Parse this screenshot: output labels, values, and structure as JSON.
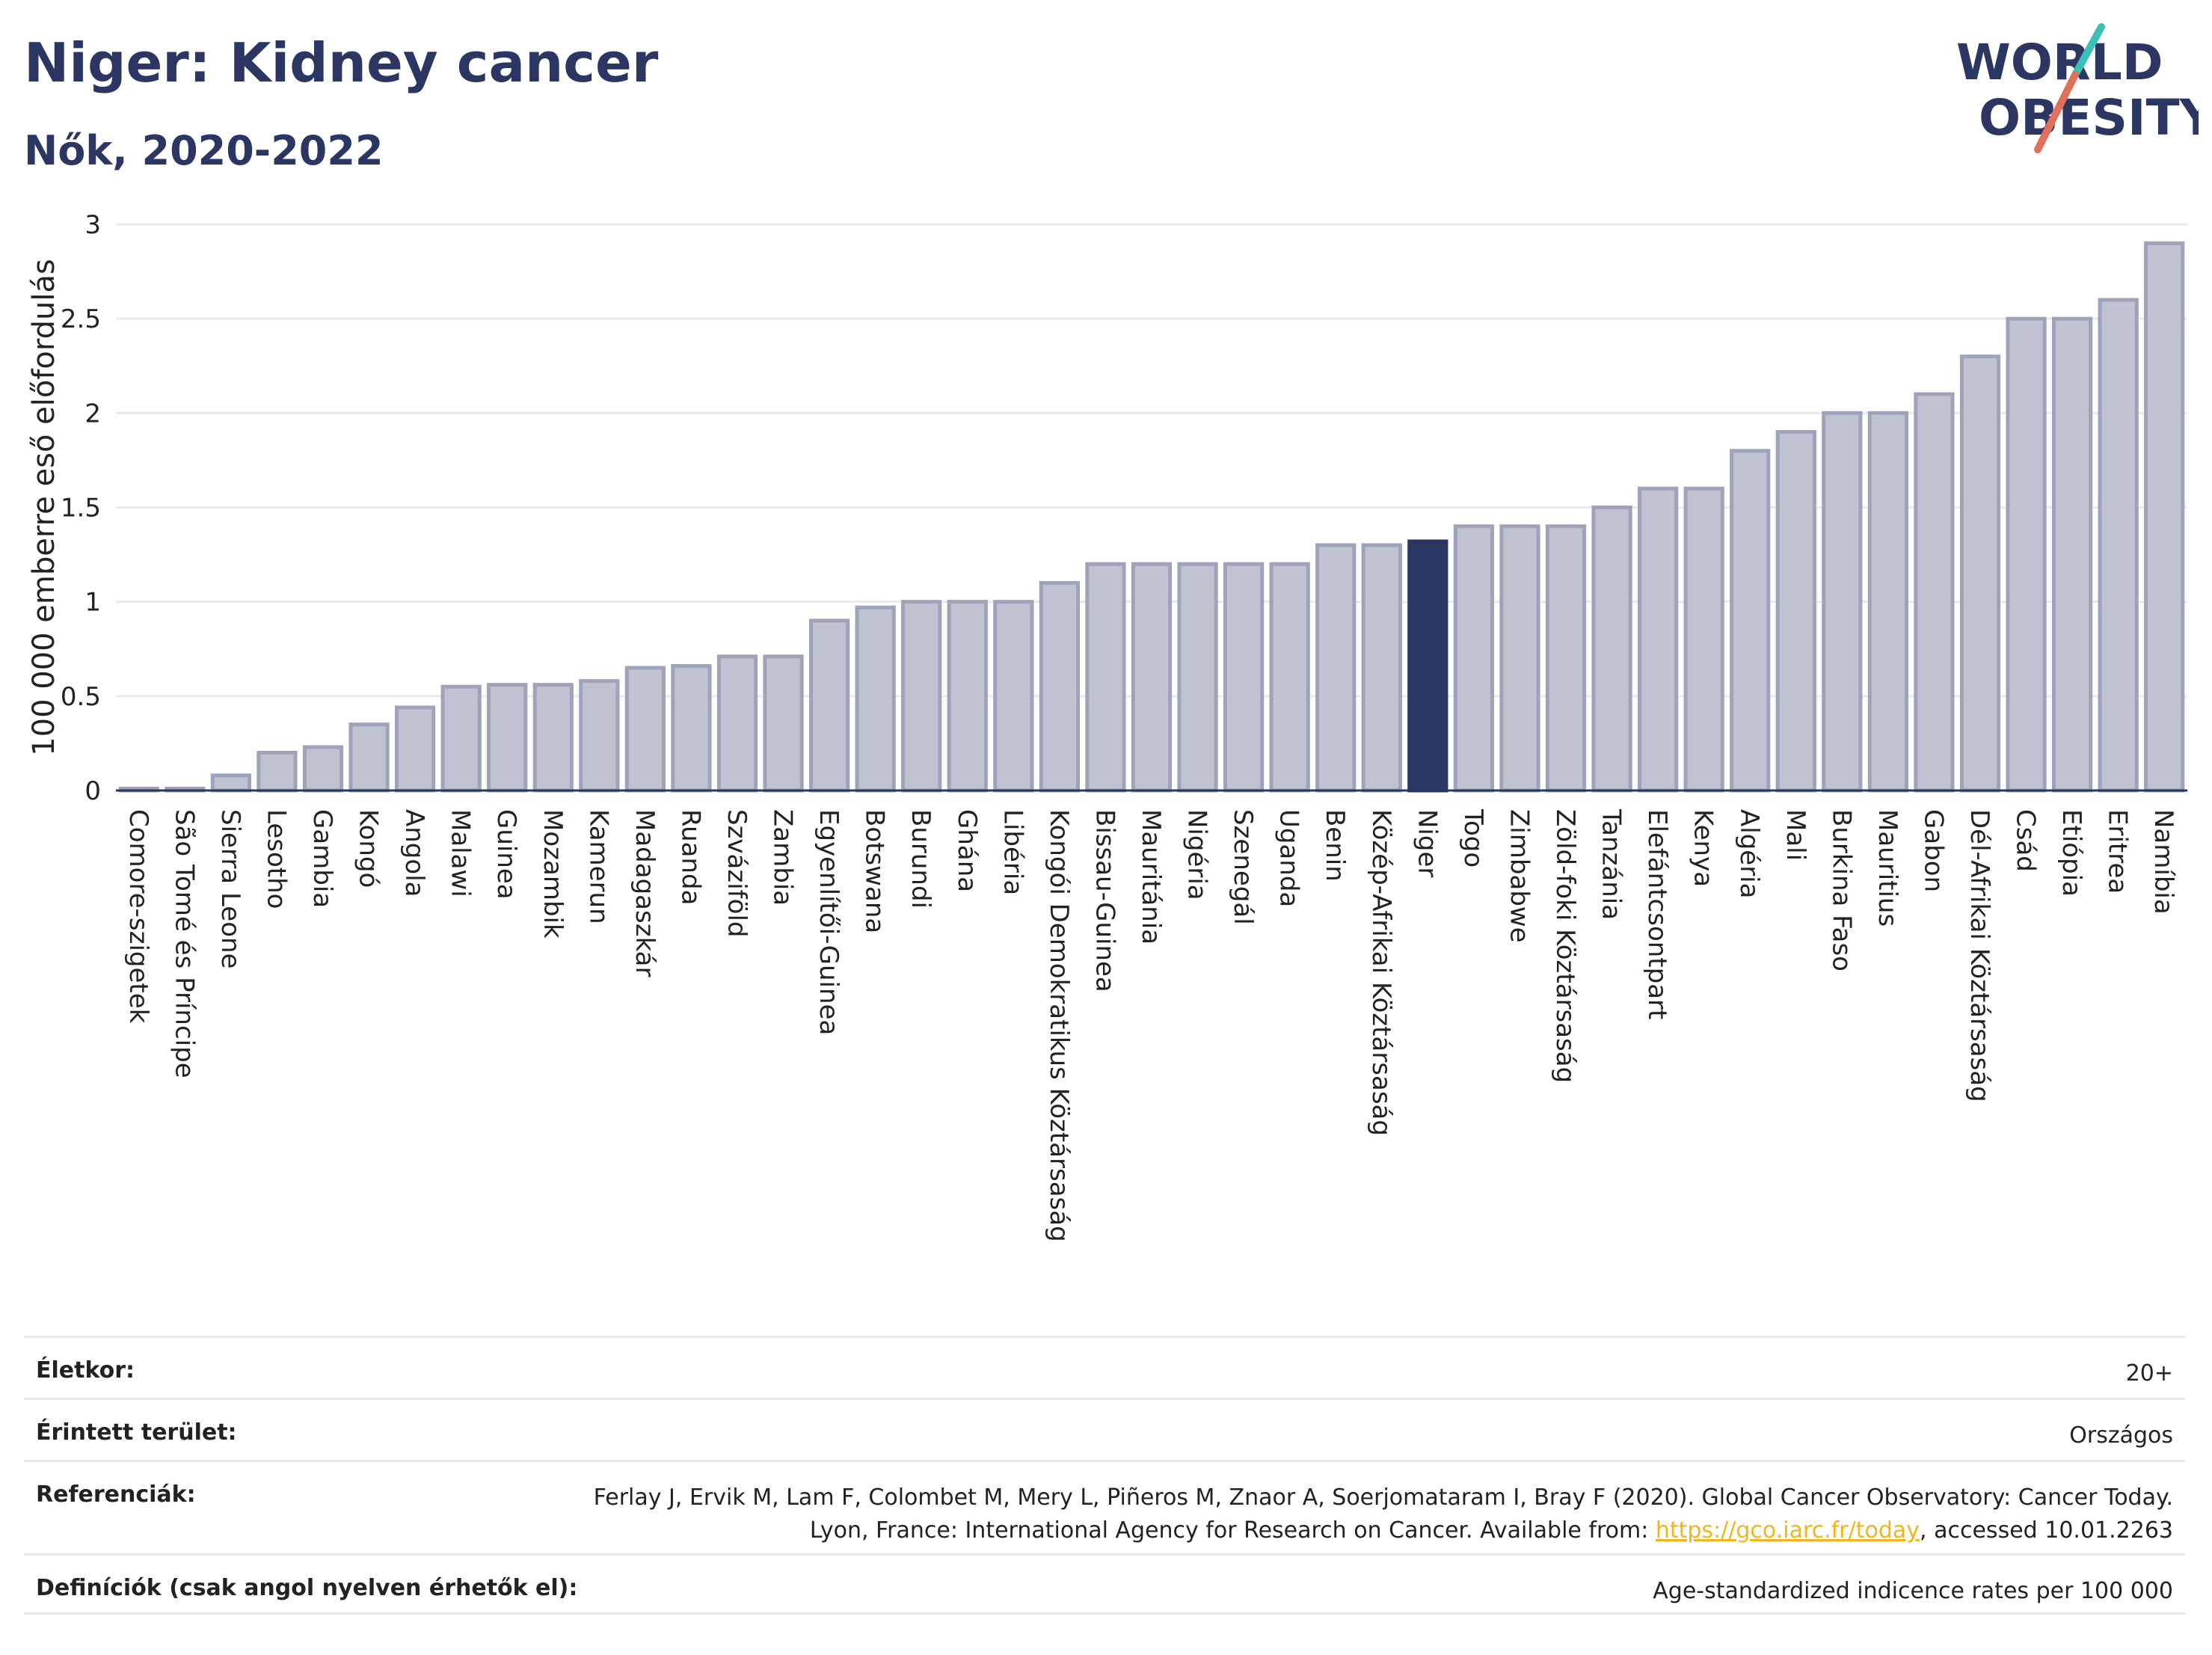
{
  "header": {
    "title": "Niger: Kidney cancer",
    "subtitle": "Nők, 2020-2022"
  },
  "logo": {
    "line1": "WORLD",
    "line2": "OBESITY",
    "colors": [
      "#2b3663",
      "#e0705a",
      "#3cbfb5"
    ]
  },
  "colors": {
    "bar": "#bfc3d1",
    "bar_edge": "#9ea3b9",
    "highlight": "#2b3663",
    "grid": "#e8eaf0",
    "axis": "#2b3663"
  },
  "chart_data": {
    "type": "bar",
    "title": "Niger: Kidney cancer",
    "subtitle": "Nők, 2020-2022",
    "xlabel": "",
    "ylabel": "100 000 emberre eső előfordulás",
    "ylim": [
      0,
      3
    ],
    "yticks": [
      0,
      0.5,
      1,
      1.5,
      2,
      2.5,
      3
    ],
    "ytick_labels": [
      "0",
      "0.5",
      "1",
      "1.5",
      "2",
      "2.5",
      "3"
    ],
    "grid": true,
    "highlight": "Niger",
    "categories": [
      "Comore-szigetek",
      "São Tomé és Príncipe",
      "Sierra Leone",
      "Lesotho",
      "Gambia",
      "Kongó",
      "Angola",
      "Malawi",
      "Guinea",
      "Mozambik",
      "Kamerun",
      "Madagaszkár",
      "Ruanda",
      "Szváziföld",
      "Zambia",
      "Egyenlítői-Guinea",
      "Botswana",
      "Burundi",
      "Ghána",
      "Libéria",
      "Kongói Demokratikus Köztársaság",
      "Bissau-Guinea",
      "Mauritánia",
      "Nigéria",
      "Szenegál",
      "Uganda",
      "Benin",
      "Közép-Afrikai Köztársaság",
      "Niger",
      "Togo",
      "Zimbabwe",
      "Zöld-foki Köztársaság",
      "Tanzánia",
      "Elefántcsontpart",
      "Kenya",
      "Algéria",
      "Mali",
      "Burkina Faso",
      "Mauritius",
      "Gabon",
      "Dél-Afrikai Köztársaság",
      "Csád",
      "Etiópia",
      "Eritrea",
      "Namíbia"
    ],
    "values": [
      0.01,
      0.01,
      0.08,
      0.2,
      0.23,
      0.35,
      0.44,
      0.55,
      0.56,
      0.56,
      0.58,
      0.65,
      0.66,
      0.71,
      0.71,
      0.9,
      0.97,
      1.0,
      1.0,
      1.0,
      1.1,
      1.2,
      1.2,
      1.2,
      1.2,
      1.2,
      1.3,
      1.3,
      1.32,
      1.4,
      1.4,
      1.4,
      1.5,
      1.6,
      1.6,
      1.8,
      1.9,
      2.0,
      2.0,
      2.1,
      2.3,
      2.5,
      2.5,
      2.6,
      2.9
    ]
  },
  "info": {
    "rows": [
      {
        "label": "Életkor:",
        "value": "20+"
      },
      {
        "label": "Érintett terület:",
        "value": "Országos"
      },
      {
        "label": "Referenciák:",
        "value_pre": "Ferlay J, Ervik M, Lam F, Colombet M, Mery L, Piñeros M, Znaor A, Soerjomataram I, Bray F (2020). Global Cancer Observatory: Cancer Today. Lyon, France: International Agency for Research on Cancer. Available from: ",
        "link": "https://gco.iarc.fr/today",
        "value_post": ", accessed 10.01.2263"
      },
      {
        "label": "Definíciók (csak angol nyelven érhetők el):",
        "value": "Age-standardized indicence rates per 100 000"
      }
    ]
  }
}
